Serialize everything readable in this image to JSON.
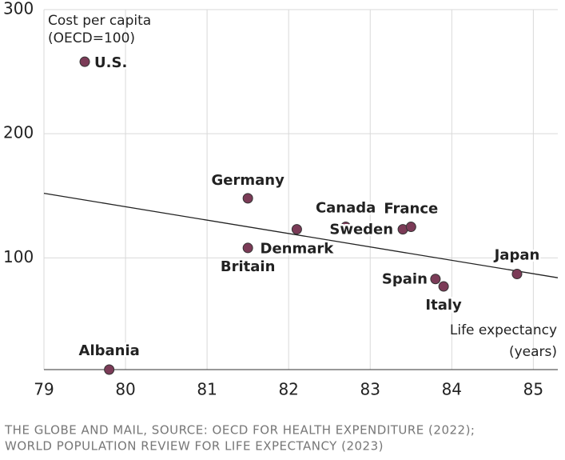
{
  "chart_data": {
    "type": "scatter",
    "y_label": [
      "Cost per capita",
      "(OECD=100)"
    ],
    "x_label": [
      "Life expectancy",
      "(years)"
    ],
    "source": [
      "THE GLOBE AND MAIL, SOURCE: OECD FOR HEALTH EXPENDITURE (2022);",
      "WORLD POPULATION REVIEW FOR LIFE EXPECTANCY (2023)"
    ],
    "labels": [
      "U.S.",
      "Albania",
      "Germany",
      "Britain",
      "Denmark",
      "Canada",
      "Sweden",
      "France",
      "Spain",
      "Italy",
      "Japan"
    ],
    "x": [
      79.5,
      79.8,
      81.5,
      81.5,
      82.1,
      82.7,
      83.4,
      83.5,
      83.8,
      83.9,
      84.8
    ],
    "y": [
      258,
      10,
      148,
      108,
      123,
      125,
      123,
      125,
      83,
      77,
      87
    ],
    "color": "#7b3b57",
    "trendline": {
      "x": [
        79,
        85.3
      ],
      "y": [
        152,
        84
      ]
    },
    "xlim": [
      79,
      85.3
    ],
    "ylim": [
      10,
      300
    ],
    "xticks": [
      79,
      80,
      81,
      82,
      83,
      84,
      85
    ],
    "yticks": [
      100,
      200,
      300
    ],
    "grid": true
  }
}
